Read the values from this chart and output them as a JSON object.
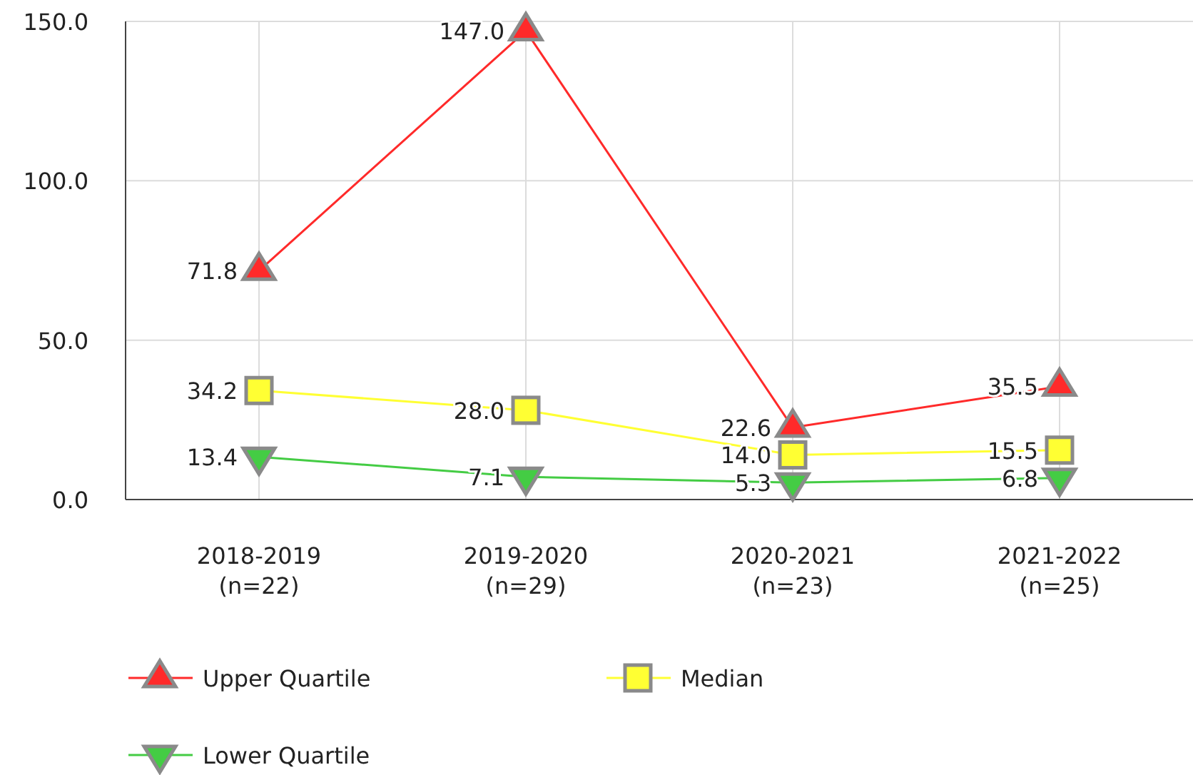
{
  "chart_data": {
    "type": "line",
    "categories": [
      "2018-2019 (n=22)",
      "2019-2020 (n=29)",
      "2020-2021 (n=23)",
      "2021-2022 (n=25)"
    ],
    "series": [
      {
        "name": "Upper Quartile",
        "color": "#ff2a2a",
        "marker": "triangle",
        "values": [
          71.8,
          147.0,
          22.6,
          35.5
        ],
        "value_labels": [
          "71.8",
          "147.0",
          "22.6",
          "35.5"
        ]
      },
      {
        "name": "Median",
        "color": "#ffff33",
        "marker": "square",
        "values": [
          34.2,
          28.0,
          14.0,
          15.5
        ],
        "value_labels": [
          "34.2",
          "28.0",
          "14.0",
          "15.5"
        ]
      },
      {
        "name": "Lower Quartile",
        "color": "#44cc44",
        "marker": "triangle-down",
        "values": [
          13.4,
          7.1,
          5.3,
          6.8
        ],
        "value_labels": [
          "13.4",
          "7.1",
          "5.3",
          "6.8"
        ]
      }
    ],
    "ylim": [
      0,
      150
    ],
    "yticks": [
      {
        "value": 0,
        "label": "0.0"
      },
      {
        "value": 50,
        "label": "50.0"
      },
      {
        "value": 100,
        "label": "100.0"
      },
      {
        "value": 150,
        "label": "150.0"
      }
    ],
    "grid": true,
    "legend": "bottom"
  }
}
